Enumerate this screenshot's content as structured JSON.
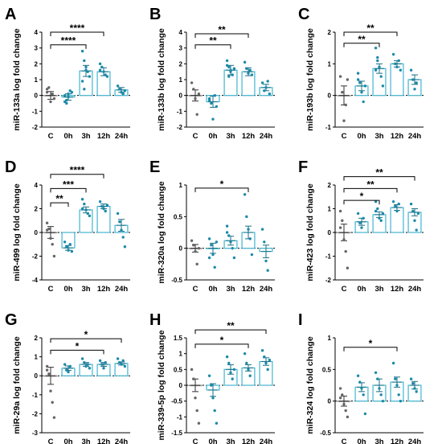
{
  "chart_data": [
    {
      "panel": "A",
      "type": "bar",
      "ylabel": "miR-133a log fold change",
      "categories": [
        "C",
        "0h",
        "3h",
        "12h",
        "24h"
      ],
      "values": [
        0.0,
        -0.1,
        1.55,
        1.5,
        0.35
      ],
      "errors": [
        0.25,
        0.2,
        0.35,
        0.25,
        0.15
      ],
      "points": [
        [
          0.2,
          0.5,
          -0.4,
          0.1,
          -0.2,
          0.4
        ],
        [
          0.0,
          -0.5,
          -0.1,
          0.3,
          0.2,
          -0.4,
          -0.3,
          0.1
        ],
        [
          2.8,
          2.2,
          1.8,
          1.5,
          1.2,
          0.9,
          0.4,
          1.6
        ],
        [
          2.0,
          1.8,
          1.5,
          1.3,
          1.2,
          1.6
        ],
        [
          0.6,
          0.4,
          0.2,
          0.1,
          0.3
        ]
      ],
      "ylim": [
        -2,
        4
      ],
      "yticks": [
        -2,
        -1,
        0,
        1,
        2,
        3,
        4
      ],
      "significance": [
        {
          "from": "C",
          "to": "3h",
          "label": "****",
          "y": 3.2
        },
        {
          "from": "C",
          "to": "12h",
          "label": "****",
          "y": 4.0
        }
      ]
    },
    {
      "panel": "B",
      "type": "bar",
      "ylabel": "miR-133b log fold change",
      "categories": [
        "C",
        "0h",
        "3h",
        "12h",
        "24h"
      ],
      "values": [
        0.0,
        -0.4,
        1.6,
        1.5,
        0.5
      ],
      "errors": [
        0.35,
        0.35,
        0.3,
        0.25,
        0.2
      ],
      "points": [
        [
          0.8,
          0.4,
          -0.2,
          -1.2,
          0.1
        ],
        [
          -0.2,
          -0.5,
          -1.5,
          0.0,
          -0.7,
          -0.3
        ],
        [
          2.2,
          1.8,
          1.5,
          1.3,
          1.7,
          1.9,
          1.2,
          1.6
        ],
        [
          2.1,
          1.7,
          1.4,
          1.6,
          1.3
        ],
        [
          0.8,
          0.3,
          0.5,
          0.9,
          0.1
        ]
      ],
      "ylim": [
        -2,
        4
      ],
      "yticks": [
        -2,
        -1,
        0,
        1,
        2,
        3,
        4
      ],
      "significance": [
        {
          "from": "C",
          "to": "3h",
          "label": "**",
          "y": 3.2
        },
        {
          "from": "C",
          "to": "12h",
          "label": "**",
          "y": 3.9
        }
      ]
    },
    {
      "panel": "C",
      "type": "bar",
      "ylabel": "miR-193b log fold change",
      "categories": [
        "C",
        "0h",
        "3h",
        "12h",
        "24h"
      ],
      "values": [
        0.0,
        0.3,
        0.85,
        1.0,
        0.5
      ],
      "errors": [
        0.3,
        0.15,
        0.15,
        0.1,
        0.15
      ],
      "points": [
        [
          0.6,
          0.1,
          -0.8,
          -0.3,
          0.5
        ],
        [
          0.7,
          0.4,
          0.1,
          -0.2,
          0.3,
          0.5
        ],
        [
          1.5,
          1.2,
          0.9,
          0.6,
          0.3,
          0.8,
          1.1
        ],
        [
          1.3,
          1.0,
          0.9,
          1.1,
          0.8
        ],
        [
          0.8,
          0.5,
          0.2,
          0.4
        ]
      ],
      "ylim": [
        -1,
        2
      ],
      "yticks": [
        -1,
        0,
        1,
        2
      ],
      "significance": [
        {
          "from": "C",
          "to": "3h",
          "label": "**",
          "y": 1.65
        },
        {
          "from": "C",
          "to": "12h",
          "label": "**",
          "y": 2.0
        }
      ]
    },
    {
      "panel": "D",
      "type": "bar",
      "ylabel": "miR-499 log fold change",
      "categories": [
        "C",
        "0h",
        "3h",
        "12h",
        "24h"
      ],
      "values": [
        0.0,
        -1.3,
        1.9,
        2.2,
        0.6
      ],
      "errors": [
        0.5,
        0.2,
        0.25,
        0.2,
        0.5
      ],
      "points": [
        [
          0.8,
          0.3,
          -0.5,
          -1.0,
          -2.0,
          0.2
        ],
        [
          -0.8,
          -1.2,
          -1.5,
          -1.0,
          -1.6
        ],
        [
          2.8,
          2.4,
          1.9,
          1.6,
          1.4,
          2.0
        ],
        [
          2.6,
          2.2,
          2.0,
          1.8,
          2.3
        ],
        [
          1.6,
          0.9,
          0.2,
          -0.4,
          -1.2
        ]
      ],
      "ylim": [
        -4,
        4
      ],
      "yticks": [
        -4,
        -2,
        0,
        2,
        4
      ],
      "significance": [
        {
          "from": "C",
          "to": "0h",
          "label": "**",
          "y": 2.5
        },
        {
          "from": "C",
          "to": "3h",
          "label": "***",
          "y": 3.7
        },
        {
          "from": "C",
          "to": "12h",
          "label": "****",
          "y": 4.9
        }
      ]
    },
    {
      "panel": "E",
      "type": "bar",
      "ylabel": "miR-320a log fold change",
      "categories": [
        "C",
        "0h",
        "3h",
        "12h",
        "24h"
      ],
      "values": [
        0.0,
        0.0,
        0.12,
        0.25,
        -0.05
      ],
      "errors": [
        0.06,
        0.08,
        0.07,
        0.1,
        0.1
      ],
      "points": [
        [
          0.12,
          0.05,
          -0.05,
          -0.25,
          0.0
        ],
        [
          0.15,
          0.05,
          -0.1,
          -0.3,
          0.1,
          -0.15
        ],
        [
          0.35,
          0.2,
          0.1,
          0.0,
          -0.15,
          0.25
        ],
        [
          0.85,
          0.5,
          0.3,
          0.15,
          -0.1
        ],
        [
          0.3,
          0.1,
          -0.2,
          -0.35
        ]
      ],
      "ylim": [
        -0.5,
        1.0
      ],
      "yticks": [
        -0.5,
        0.0,
        0.5,
        1.0
      ],
      "significance": [
        {
          "from": "C",
          "to": "12h",
          "label": "*",
          "y": 0.95
        }
      ]
    },
    {
      "panel": "F",
      "type": "bar",
      "ylabel": "miR-423 log fold change",
      "categories": [
        "C",
        "0h",
        "3h",
        "12h",
        "24h"
      ],
      "values": [
        0.0,
        0.45,
        0.75,
        1.05,
        0.85
      ],
      "errors": [
        0.35,
        0.15,
        0.12,
        0.12,
        0.15
      ],
      "points": [
        [
          0.9,
          0.5,
          -0.3,
          -0.8,
          -1.5,
          0.2
        ],
        [
          0.8,
          0.4,
          0.2,
          0.6
        ],
        [
          1.3,
          1.0,
          0.6,
          0.5,
          0.8,
          0.9
        ],
        [
          1.3,
          1.1,
          0.9,
          1.2
        ],
        [
          1.2,
          0.9,
          0.5,
          0.1,
          0.8
        ]
      ],
      "ylim": [
        -2,
        2
      ],
      "yticks": [
        -2,
        -1,
        0,
        1,
        2
      ],
      "significance": [
        {
          "from": "C",
          "to": "3h",
          "label": "*",
          "y": 1.35
        },
        {
          "from": "C",
          "to": "12h",
          "label": "**",
          "y": 1.85
        },
        {
          "from": "C",
          "to": "24h",
          "label": "**",
          "y": 2.35
        }
      ]
    },
    {
      "panel": "G",
      "type": "bar",
      "ylabel": "miR-29a log fold change",
      "categories": [
        "C",
        "0h",
        "3h",
        "12h",
        "24h"
      ],
      "values": [
        0.0,
        0.4,
        0.6,
        0.6,
        0.65
      ],
      "errors": [
        0.45,
        0.12,
        0.1,
        0.1,
        0.08
      ],
      "points": [
        [
          0.5,
          0.1,
          -0.8,
          -1.4,
          -2.2,
          0.3
        ],
        [
          0.6,
          0.3,
          0.2,
          0.5
        ],
        [
          0.9,
          0.7,
          0.5,
          0.6,
          0.4
        ],
        [
          0.8,
          0.6,
          0.4,
          0.7
        ],
        [
          0.9,
          0.7,
          0.6,
          0.8,
          0.5
        ]
      ],
      "ylim": [
        -3,
        2
      ],
      "yticks": [
        -3,
        -2,
        -1,
        0,
        1,
        2
      ],
      "significance": [
        {
          "from": "C",
          "to": "12h",
          "label": "*",
          "y": 1.35
        },
        {
          "from": "C",
          "to": "24h",
          "label": "*",
          "y": 1.95
        }
      ]
    },
    {
      "panel": "H",
      "type": "bar",
      "ylabel": "miR-339-5p log fold change",
      "categories": [
        "C",
        "0h",
        "3h",
        "12h",
        "24h"
      ],
      "values": [
        0.0,
        -0.15,
        0.5,
        0.55,
        0.75
      ],
      "errors": [
        0.2,
        0.2,
        0.15,
        0.1,
        0.12
      ],
      "points": [
        [
          0.5,
          0.2,
          -0.4,
          -0.8,
          -1.2
        ],
        [
          0.3,
          0.0,
          -0.4,
          -0.8,
          -1.2
        ],
        [
          0.9,
          0.7,
          0.4,
          0.2,
          0.5
        ],
        [
          1.0,
          0.7,
          0.5,
          0.3
        ],
        [
          1.1,
          0.9,
          0.7,
          0.5,
          0.8
        ]
      ],
      "ylim": [
        -1.5,
        1.5
      ],
      "yticks": [
        -1.5,
        -1.0,
        -0.5,
        0.0,
        0.5,
        1.0,
        1.5
      ],
      "significance": [
        {
          "from": "C",
          "to": "12h",
          "label": "*",
          "y": 1.3
        },
        {
          "from": "C",
          "to": "24h",
          "label": "**",
          "y": 1.75
        }
      ]
    },
    {
      "panel": "I",
      "type": "bar",
      "ylabel": "miR-324 log fold change",
      "categories": [
        "C",
        "0h",
        "3h",
        "12h",
        "24h"
      ],
      "values": [
        0.0,
        0.22,
        0.25,
        0.3,
        0.25
      ],
      "errors": [
        0.08,
        0.07,
        0.1,
        0.08,
        0.06
      ],
      "points": [
        [
          0.2,
          0.1,
          -0.05,
          -0.15,
          -0.25,
          0.05
        ],
        [
          0.4,
          0.3,
          0.2,
          0.1,
          -0.2
        ],
        [
          0.45,
          0.35,
          0.2,
          0.1,
          0.0
        ],
        [
          0.6,
          0.35,
          0.25,
          0.1,
          0.0
        ],
        [
          0.35,
          0.28,
          0.2,
          0.15
        ]
      ],
      "ylim": [
        -0.5,
        1.0
      ],
      "yticks": [
        -0.5,
        0.0,
        0.5,
        1.0
      ],
      "significance": [
        {
          "from": "C",
          "to": "12h",
          "label": "*",
          "y": 0.85
        }
      ]
    }
  ],
  "colors": {
    "bar_edge": "#42b4d0",
    "point": "#1b8aa8",
    "control_edge": "#8a8a8a",
    "control_point": "#666666",
    "axis": "#000000"
  }
}
